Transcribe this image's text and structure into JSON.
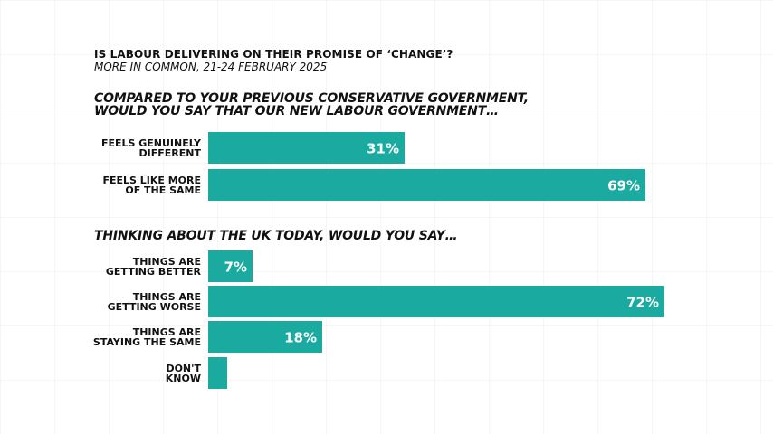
{
  "header": {
    "title": "IS LABOUR DELIVERING ON THEIR PROMISE OF ‘CHANGE’?",
    "subtitle": "MORE IN COMMON, 21-24 FEBRUARY 2025"
  },
  "colors": {
    "bar": "#1aaa9f",
    "text": "#111111",
    "value_label": "#ffffff"
  },
  "chart_data": [
    {
      "type": "bar",
      "orientation": "horizontal",
      "question": [
        "COMPARED TO YOUR PREVIOUS CONSERVATIVE GOVERNMENT,",
        "WOULD YOU SAY THAT OUR NEW LABOUR GOVERNMENT…"
      ],
      "categories": [
        "FEELS GENUINELY DIFFERENT",
        "FEELS LIKE MORE OF THE SAME"
      ],
      "category_lines": [
        [
          "FEELS GENUINELY",
          "DIFFERENT"
        ],
        [
          "FEELS LIKE MORE",
          "OF THE SAME"
        ]
      ],
      "values": [
        31,
        69
      ],
      "value_labels": [
        "31%",
        "69%"
      ],
      "unit": "%",
      "xlim": [
        0,
        100
      ]
    },
    {
      "type": "bar",
      "orientation": "horizontal",
      "question": [
        "THINKING ABOUT THE UK TODAY, WOULD YOU SAY…"
      ],
      "categories": [
        "THINGS ARE GETTING BETTER",
        "THINGS ARE GETTING WORSE",
        "THINGS ARE STAYING THE SAME",
        "DON'T KNOW"
      ],
      "category_lines": [
        [
          "THINGS ARE",
          "GETTING BETTER"
        ],
        [
          "THINGS ARE",
          "GETTING WORSE"
        ],
        [
          "THINGS ARE",
          "STAYING THE SAME"
        ],
        [
          "DON'T",
          "KNOW"
        ]
      ],
      "values": [
        7,
        72,
        18,
        3
      ],
      "value_labels": [
        "7%",
        "72%",
        "18%",
        ""
      ],
      "unit": "%",
      "xlim": [
        0,
        100
      ]
    }
  ]
}
